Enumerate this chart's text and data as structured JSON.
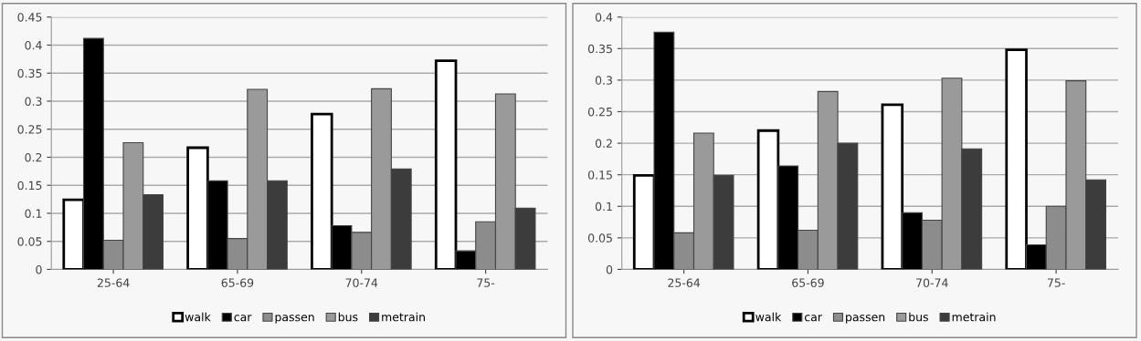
{
  "chart_data": [
    {
      "type": "bar",
      "categories": [
        "25-64",
        "65-69",
        "70-74",
        "75-"
      ],
      "ylim": [
        0,
        0.45
      ],
      "yticks": [
        0,
        0.05,
        0.1,
        0.15,
        0.2,
        0.25,
        0.3,
        0.35,
        0.4,
        0.45
      ],
      "grid": "y",
      "legend": "bottom",
      "series": [
        {
          "name": "walk",
          "color": "#ffffff",
          "values": [
            0.124,
            0.217,
            0.277,
            0.372
          ]
        },
        {
          "name": "car",
          "color": "#000000",
          "values": [
            0.412,
            0.158,
            0.078,
            0.033
          ]
        },
        {
          "name": "passen",
          "color": "#8c8c8c",
          "values": [
            0.052,
            0.055,
            0.066,
            0.085
          ]
        },
        {
          "name": "bus",
          "color": "#9a9a9a",
          "values": [
            0.226,
            0.321,
            0.322,
            0.313
          ]
        },
        {
          "name": "metrain",
          "color": "#3c3c3c",
          "values": [
            0.133,
            0.158,
            0.179,
            0.109
          ]
        }
      ]
    },
    {
      "type": "bar",
      "categories": [
        "25-64",
        "65-69",
        "70-74",
        "75-"
      ],
      "ylim": [
        0,
        0.4
      ],
      "yticks": [
        0,
        0.05,
        0.1,
        0.15,
        0.2,
        0.25,
        0.3,
        0.35,
        0.4
      ],
      "grid": "y",
      "legend": "bottom",
      "series": [
        {
          "name": "walk",
          "color": "#ffffff",
          "values": [
            0.149,
            0.22,
            0.261,
            0.348
          ]
        },
        {
          "name": "car",
          "color": "#000000",
          "values": [
            0.376,
            0.164,
            0.09,
            0.039
          ]
        },
        {
          "name": "passen",
          "color": "#8c8c8c",
          "values": [
            0.058,
            0.062,
            0.078,
            0.1
          ]
        },
        {
          "name": "bus",
          "color": "#9a9a9a",
          "values": [
            0.216,
            0.282,
            0.303,
            0.299
          ]
        },
        {
          "name": "metrain",
          "color": "#3c3c3c",
          "values": [
            0.149,
            0.2,
            0.191,
            0.142
          ]
        }
      ]
    }
  ]
}
